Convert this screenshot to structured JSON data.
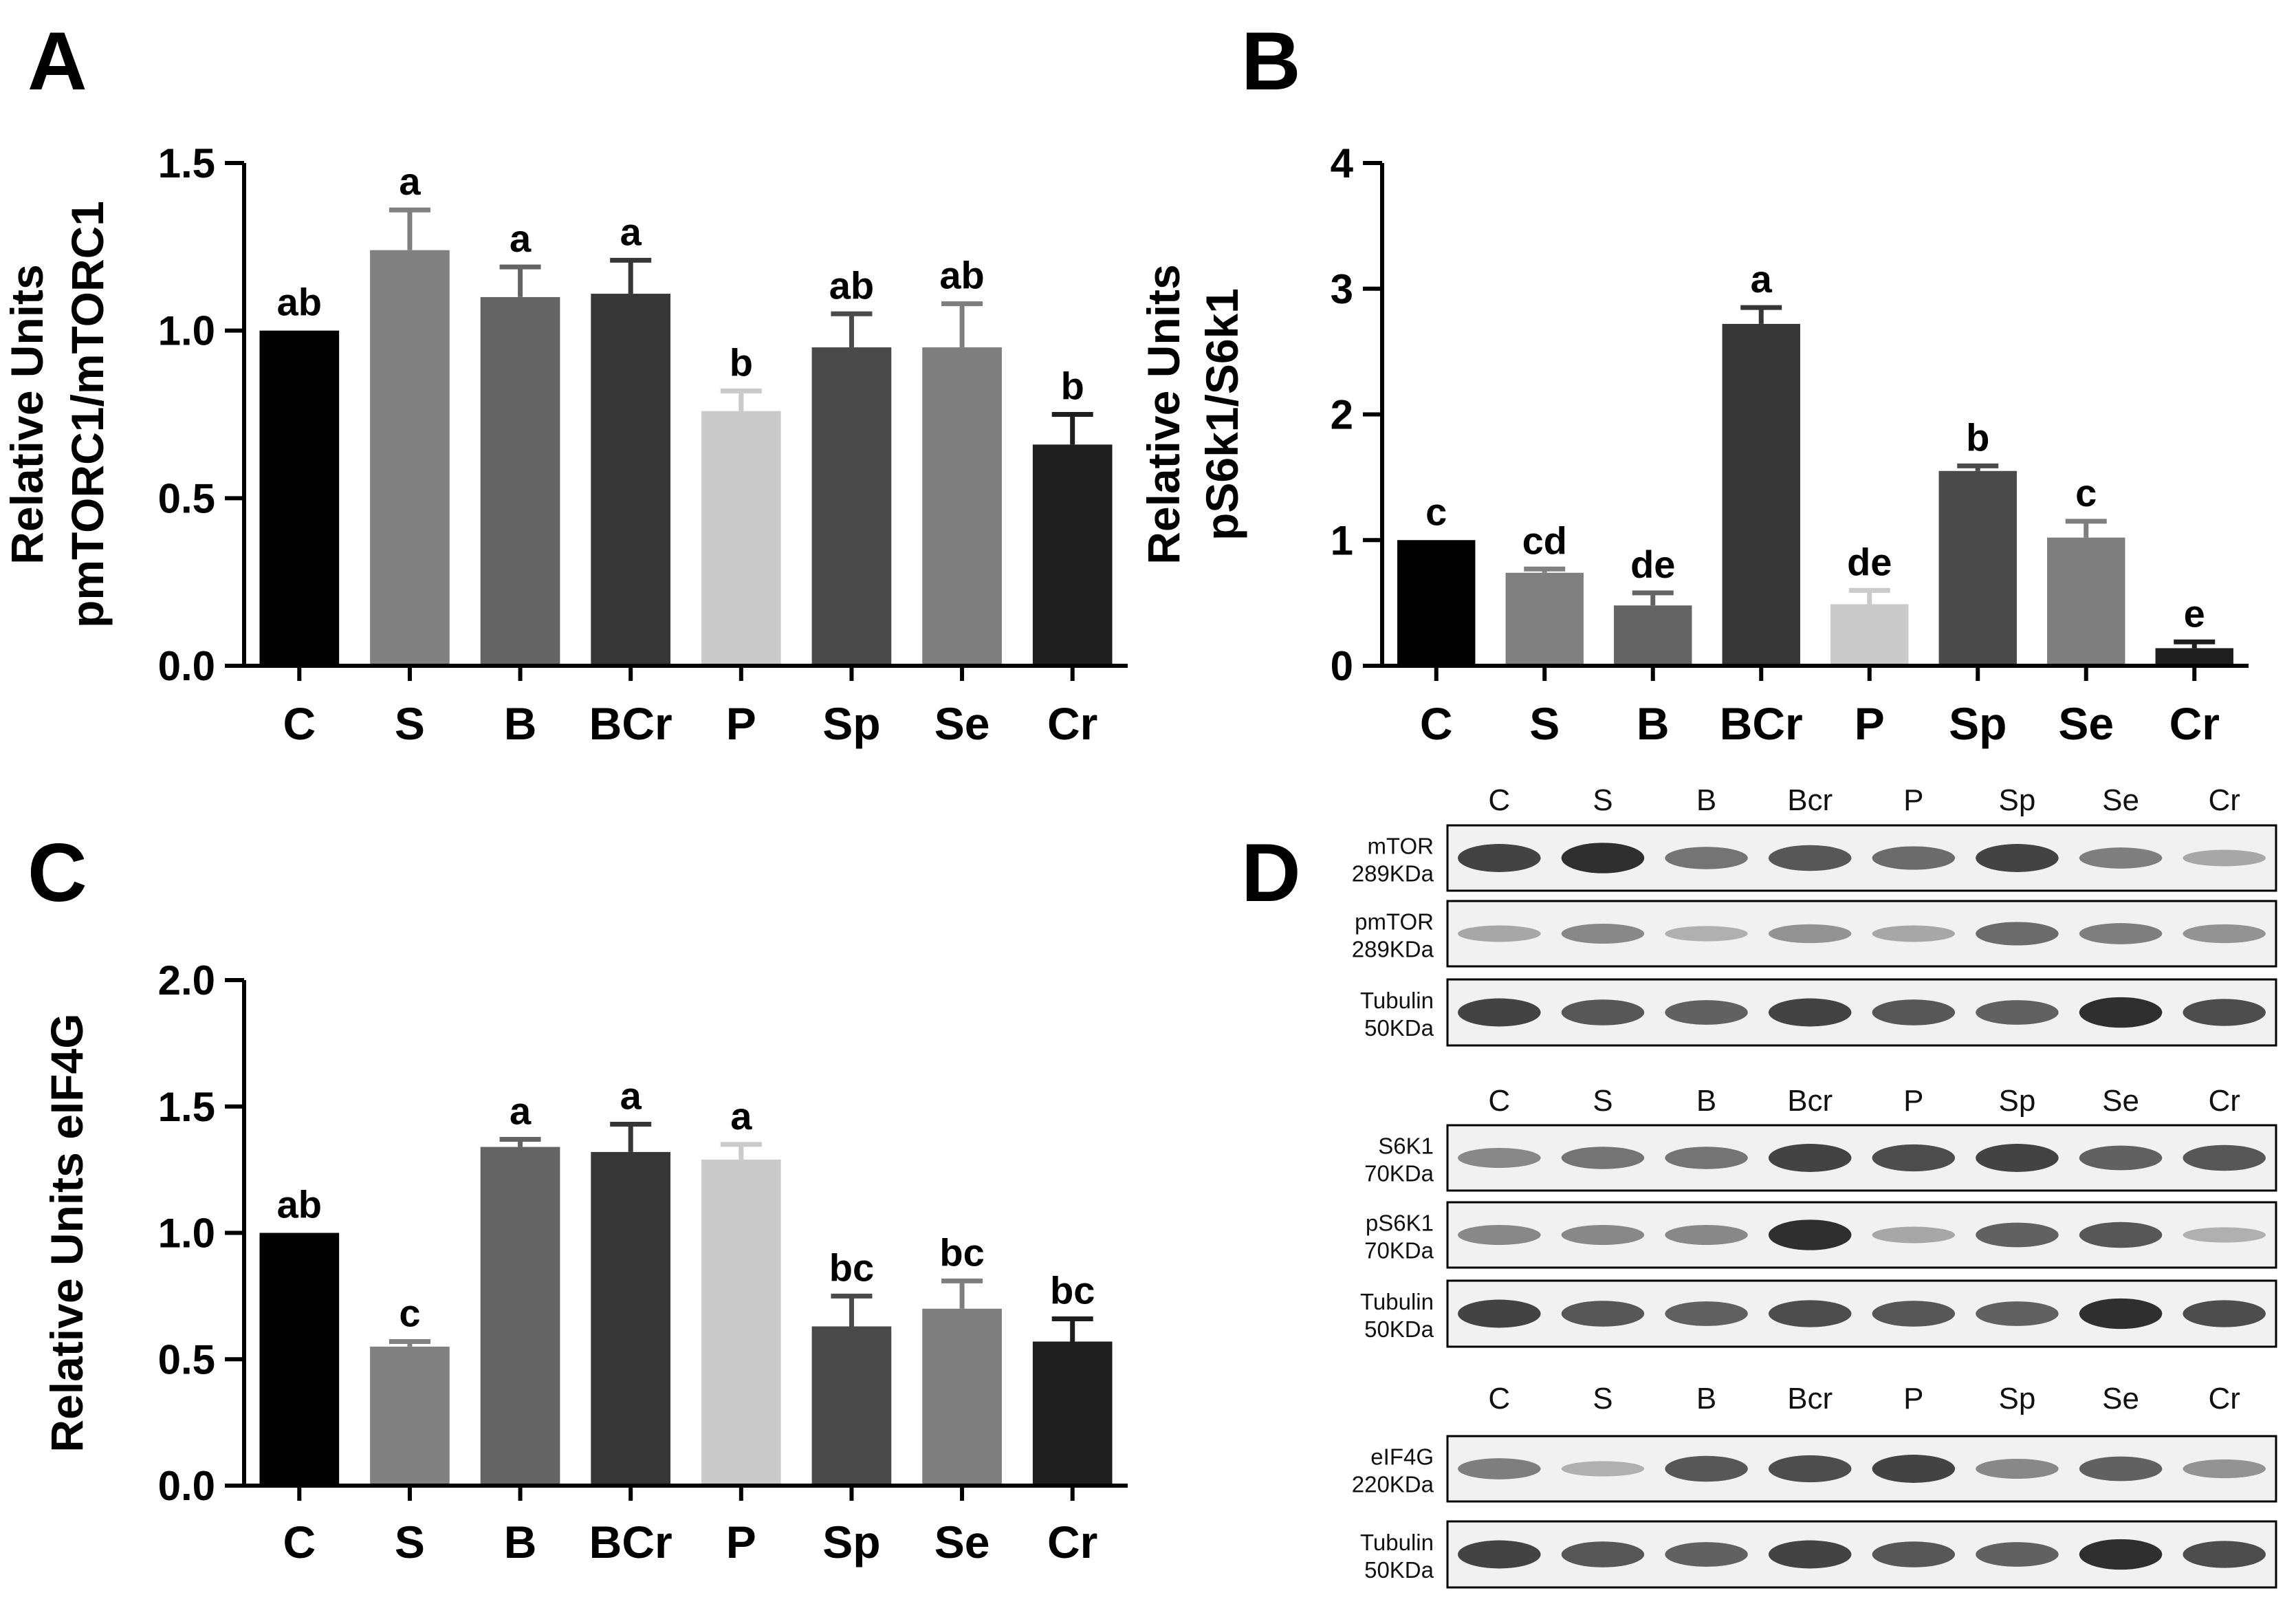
{
  "panels": {
    "A": "A",
    "B": "B",
    "C": "C",
    "D": "D"
  },
  "chart_data": [
    {
      "panel": "A",
      "type": "bar",
      "ylabel_lines": [
        "Relative Units",
        "pmTORC1/mTORC1"
      ],
      "categories": [
        "C",
        "S",
        "B",
        "BCr",
        "P",
        "Sp",
        "Se",
        "Cr"
      ],
      "values": [
        1.0,
        1.24,
        1.1,
        1.11,
        0.76,
        0.95,
        0.95,
        0.66
      ],
      "errors": [
        0.0,
        0.12,
        0.09,
        0.1,
        0.06,
        0.1,
        0.13,
        0.09
      ],
      "labels": [
        "ab",
        "a",
        "a",
        "a",
        "b",
        "ab",
        "ab",
        "b"
      ],
      "colors": [
        "#000000",
        "#808080",
        "#646464",
        "#363636",
        "#cacaca",
        "#4a4a4a",
        "#7e7e7e",
        "#1e1e1e"
      ],
      "ylim": [
        0,
        1.5
      ],
      "yticks": [
        "0.0",
        "0.5",
        "1.0",
        "1.5"
      ]
    },
    {
      "panel": "B",
      "type": "bar",
      "ylabel_lines": [
        "Relative Units",
        "pS6k1/S6k1"
      ],
      "categories": [
        "C",
        "S",
        "B",
        "BCr",
        "P",
        "Sp",
        "Se",
        "Cr"
      ],
      "values": [
        1.0,
        0.74,
        0.48,
        2.72,
        0.49,
        1.55,
        1.02,
        0.14
      ],
      "errors": [
        0.0,
        0.03,
        0.1,
        0.13,
        0.11,
        0.04,
        0.13,
        0.05
      ],
      "labels": [
        "c",
        "cd",
        "de",
        "a",
        "de",
        "b",
        "c",
        "e"
      ],
      "colors": [
        "#000000",
        "#808080",
        "#646464",
        "#363636",
        "#cacaca",
        "#4a4a4a",
        "#7e7e7e",
        "#1e1e1e"
      ],
      "ylim": [
        0,
        4
      ],
      "yticks": [
        "0",
        "1",
        "2",
        "3",
        "4"
      ]
    },
    {
      "panel": "C",
      "type": "bar",
      "ylabel_lines": [
        "Relative Units eIF4G"
      ],
      "categories": [
        "C",
        "S",
        "B",
        "BCr",
        "P",
        "Sp",
        "Se",
        "Cr"
      ],
      "values": [
        1.0,
        0.55,
        1.34,
        1.32,
        1.29,
        0.63,
        0.7,
        0.57
      ],
      "errors": [
        0.0,
        0.02,
        0.03,
        0.11,
        0.06,
        0.12,
        0.11,
        0.09
      ],
      "labels": [
        "ab",
        "c",
        "a",
        "a",
        "a",
        "bc",
        "bc",
        "bc"
      ],
      "colors": [
        "#000000",
        "#808080",
        "#646464",
        "#363636",
        "#cacaca",
        "#4a4a4a",
        "#7e7e7e",
        "#1e1e1e"
      ],
      "ylim": [
        0,
        2.0
      ],
      "yticks": [
        "0.0",
        "0.5",
        "1.0",
        "1.5",
        "2.0"
      ]
    }
  ],
  "blots": [
    {
      "lanes": [
        "C",
        "S",
        "B",
        "Bcr",
        "P",
        "Sp",
        "Se",
        "Cr"
      ],
      "strips": [
        {
          "label1": "mTOR",
          "label2": "289KDa",
          "intensity": [
            0.85,
            0.95,
            0.6,
            0.75,
            0.65,
            0.85,
            0.55,
            0.35
          ]
        },
        {
          "label1": "pmTOR",
          "label2": "289KDa",
          "intensity": [
            0.35,
            0.5,
            0.3,
            0.45,
            0.35,
            0.65,
            0.55,
            0.45
          ]
        },
        {
          "label1": "Tubulin",
          "label2": "50KDa",
          "intensity": [
            0.85,
            0.75,
            0.7,
            0.85,
            0.75,
            0.7,
            0.95,
            0.8
          ]
        }
      ]
    },
    {
      "lanes": [
        "C",
        "S",
        "B",
        "Bcr",
        "P",
        "Sp",
        "Se",
        "Cr"
      ],
      "strips": [
        {
          "label1": "S6K1",
          "label2": "70KDa",
          "intensity": [
            0.5,
            0.6,
            0.6,
            0.85,
            0.8,
            0.85,
            0.7,
            0.75
          ]
        },
        {
          "label1": "pS6K1",
          "label2": "70KDa",
          "intensity": [
            0.5,
            0.5,
            0.5,
            0.95,
            0.35,
            0.7,
            0.75,
            0.3
          ]
        },
        {
          "label1": "Tubulin",
          "label2": "50KDa",
          "intensity": [
            0.85,
            0.75,
            0.7,
            0.8,
            0.75,
            0.7,
            0.95,
            0.8
          ]
        }
      ]
    },
    {
      "lanes": [
        "C",
        "S",
        "B",
        "Bcr",
        "P",
        "Sp",
        "Se",
        "Cr"
      ],
      "strips": [
        {
          "label1": "eIF4G",
          "label2": "220KDa",
          "intensity": [
            0.55,
            0.3,
            0.75,
            0.8,
            0.85,
            0.5,
            0.7,
            0.45
          ]
        },
        {
          "label1": "Tubulin",
          "label2": "50KDa",
          "intensity": [
            0.85,
            0.75,
            0.7,
            0.85,
            0.75,
            0.7,
            0.95,
            0.8
          ]
        }
      ]
    }
  ]
}
